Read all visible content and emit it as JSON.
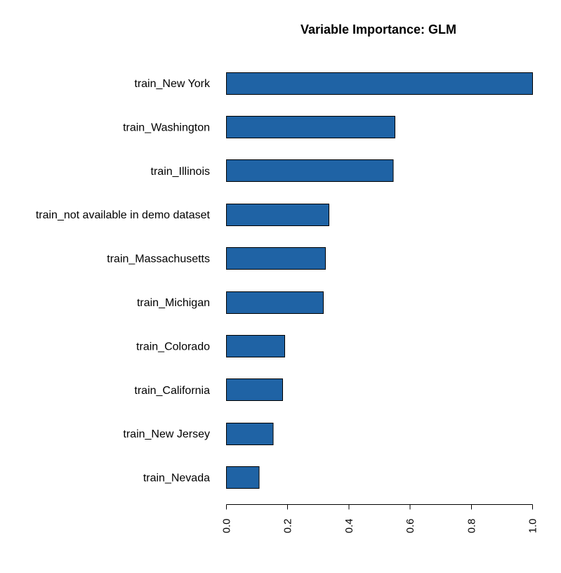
{
  "chart_data": {
    "type": "bar",
    "orientation": "horizontal",
    "title": "Variable Importance: GLM",
    "xlabel": "",
    "ylabel": "",
    "categories": [
      "train_New York",
      "train_Washington",
      "train_Illinois",
      "train_not available in demo dataset",
      "train_Massachusetts",
      "train_Michigan",
      "train_Colorado",
      "train_California",
      "train_New Jersey",
      "train_Nevada"
    ],
    "values": [
      1.0,
      0.55,
      0.545,
      0.335,
      0.323,
      0.316,
      0.19,
      0.183,
      0.152,
      0.107
    ],
    "xlim": [
      0,
      1
    ],
    "x_ticks": [
      0.0,
      0.2,
      0.4,
      0.6,
      0.8,
      1.0
    ],
    "x_tick_labels": [
      "0.0",
      "0.2",
      "0.4",
      "0.6",
      "0.8",
      "1.0"
    ],
    "grid": false,
    "legend": "none",
    "bar_color": "#1f63a5"
  }
}
